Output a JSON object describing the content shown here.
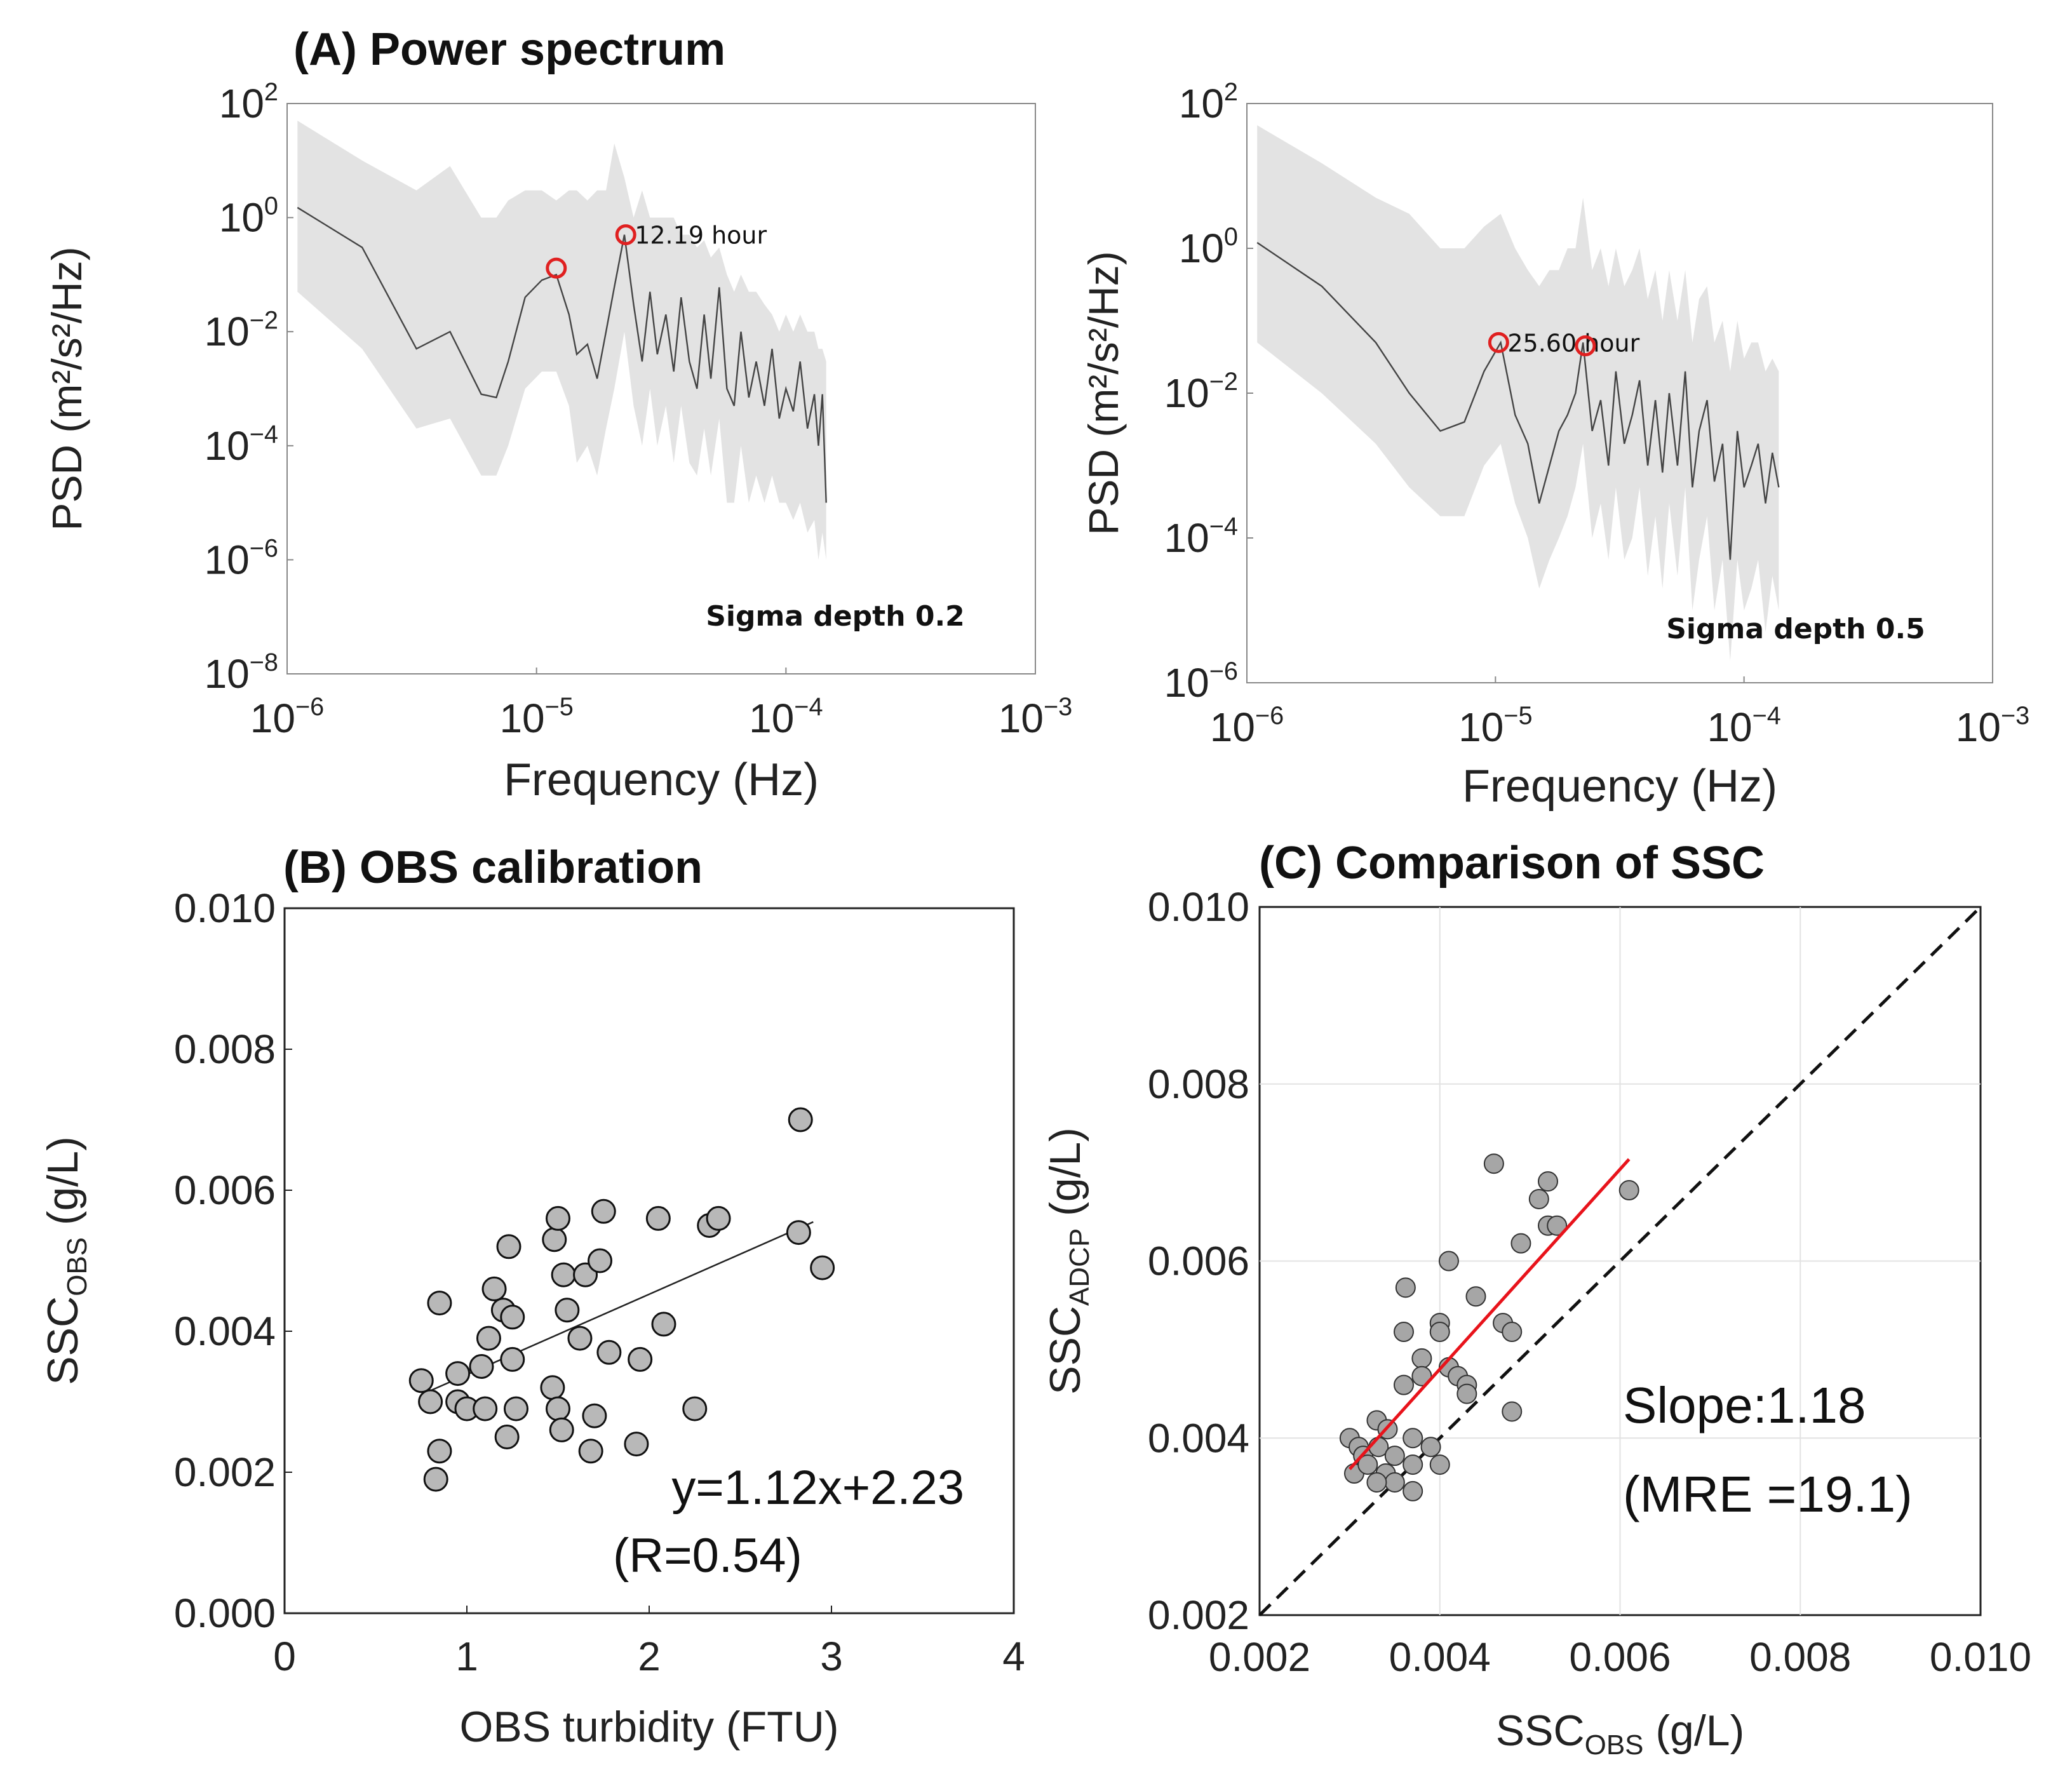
{
  "chart_data": [
    {
      "id": "A1",
      "type": "line",
      "title": "(A) Power spectrum",
      "xlabel": "Frequency (Hz)",
      "ylabel": "PSD (m²/s²/Hz)",
      "xscale": "log",
      "yscale": "log",
      "xlim": [
        1e-06,
        0.001
      ],
      "ylim": [
        1e-08,
        100
      ],
      "xticks": [
        {
          "v": 1e-06,
          "base": "10",
          "exp": "−6"
        },
        {
          "v": 1e-05,
          "base": "10",
          "exp": "−5"
        },
        {
          "v": 0.0001,
          "base": "10",
          "exp": "−4"
        },
        {
          "v": 0.001,
          "base": "10",
          "exp": "−3"
        }
      ],
      "yticks": [
        {
          "v": 1e-08,
          "base": "10",
          "exp": "−8"
        },
        {
          "v": 1e-06,
          "base": "10",
          "exp": "−6"
        },
        {
          "v": 0.0001,
          "base": "10",
          "exp": "−4"
        },
        {
          "v": 0.01,
          "base": "10",
          "exp": "−2"
        },
        {
          "v": 1,
          "base": "10",
          "exp": "0"
        },
        {
          "v": 100,
          "base": "10",
          "exp": "2"
        }
      ],
      "series": [
        {
          "name": "PSD",
          "x": [
            1.1e-06,
            2e-06,
            3.3e-06,
            4.5e-06,
            6e-06,
            6.9e-06,
            7.7e-06,
            9e-06,
            1.05e-05,
            1.2e-05,
            1.35e-05,
            1.45e-05,
            1.6e-05,
            1.75e-05,
            1.9e-05,
            2.05e-05,
            2.25e-05,
            2.45e-05,
            2.65e-05,
            2.85e-05,
            3.05e-05,
            3.3e-05,
            3.55e-05,
            3.8e-05,
            4.1e-05,
            4.4e-05,
            4.7e-05,
            5e-05,
            5.4e-05,
            5.8e-05,
            6.2e-05,
            6.6e-05,
            7.1e-05,
            7.6e-05,
            8.2e-05,
            8.8e-05,
            9.4e-05,
            0.0001,
            0.000107,
            0.000114,
            0.000122,
            0.00013,
            0.000135,
            0.00014,
            0.000145
          ],
          "y": [
            1.5,
            0.3,
            0.005,
            0.01,
            0.0008,
            0.0007,
            0.003,
            0.04,
            0.08,
            0.1,
            0.02,
            0.004,
            0.006,
            0.0015,
            0.01,
            0.06,
            0.5,
            0.03,
            0.003,
            0.05,
            0.004,
            0.02,
            0.002,
            0.04,
            0.003,
            0.001,
            0.02,
            0.0015,
            0.06,
            0.001,
            0.0005,
            0.01,
            0.0007,
            0.003,
            0.0005,
            0.005,
            0.0003,
            0.001,
            0.0004,
            0.003,
            0.0002,
            0.0008,
            0.0001,
            0.0008,
            1e-05
          ]
        }
      ],
      "band_upper": [
        50,
        10,
        3,
        8,
        1,
        1,
        2,
        3,
        3,
        2,
        3,
        3,
        2,
        3,
        3,
        20,
        5,
        1,
        3,
        1,
        1,
        1,
        1,
        0.5,
        0.5,
        0.3,
        0.4,
        0.2,
        0.3,
        0.1,
        0.05,
        0.1,
        0.05,
        0.05,
        0.03,
        0.02,
        0.01,
        0.02,
        0.01,
        0.02,
        0.01,
        0.01,
        0.005,
        0.005,
        0.003
      ],
      "band_lower": [
        0.05,
        0.005,
        0.0002,
        0.0003,
        3e-05,
        3e-05,
        0.0001,
        0.001,
        0.002,
        0.002,
        0.0005,
        5e-05,
        0.0001,
        3e-05,
        0.0002,
        0.001,
        0.01,
        0.0005,
        0.0001,
        0.001,
        0.0001,
        0.0005,
        5e-05,
        0.0005,
        5e-05,
        3e-05,
        0.0002,
        3e-05,
        0.0003,
        1e-05,
        1e-05,
        0.0001,
        1e-05,
        3e-05,
        1e-05,
        3e-05,
        1e-05,
        1e-05,
        5e-06,
        1e-05,
        3e-06,
        5e-06,
        1e-06,
        3e-06,
        1e-06
      ],
      "peaks": [
        {
          "x": 1.2e-05,
          "y": 0.13
        },
        {
          "x": 2.28e-05,
          "y": 0.5,
          "label": "12.19 hour"
        }
      ],
      "annotation": "Sigma depth 0.2"
    },
    {
      "id": "A2",
      "type": "line",
      "title": "",
      "xlabel": "Frequency (Hz)",
      "ylabel": "PSD (m²/s²/Hz)",
      "xscale": "log",
      "yscale": "log",
      "xlim": [
        1e-06,
        0.001
      ],
      "ylim": [
        1e-06,
        100
      ],
      "xticks": [
        {
          "v": 1e-06,
          "base": "10",
          "exp": "−6"
        },
        {
          "v": 1e-05,
          "base": "10",
          "exp": "−5"
        },
        {
          "v": 0.0001,
          "base": "10",
          "exp": "−4"
        },
        {
          "v": 0.001,
          "base": "10",
          "exp": "−3"
        }
      ],
      "yticks": [
        {
          "v": 1e-06,
          "base": "10",
          "exp": "−6"
        },
        {
          "v": 0.0001,
          "base": "10",
          "exp": "−4"
        },
        {
          "v": 0.01,
          "base": "10",
          "exp": "−2"
        },
        {
          "v": 1,
          "base": "10",
          "exp": "0"
        },
        {
          "v": 100,
          "base": "10",
          "exp": "2"
        }
      ],
      "series": [
        {
          "name": "PSD",
          "x": [
            1.1e-06,
            2e-06,
            3.3e-06,
            4.5e-06,
            6e-06,
            7.5e-06,
            9e-06,
            1.05e-05,
            1.2e-05,
            1.35e-05,
            1.5e-05,
            1.65e-05,
            1.8e-05,
            1.95e-05,
            2.1e-05,
            2.25e-05,
            2.45e-05,
            2.65e-05,
            2.85e-05,
            3.05e-05,
            3.3e-05,
            3.55e-05,
            3.8e-05,
            4.1e-05,
            4.4e-05,
            4.7e-05,
            5e-05,
            5.4e-05,
            5.8e-05,
            6.2e-05,
            6.6e-05,
            7.1e-05,
            7.6e-05,
            8.2e-05,
            8.8e-05,
            9.4e-05,
            0.0001,
            0.000107,
            0.000114,
            0.000122,
            0.00013,
            0.000138
          ],
          "y": [
            1.2,
            0.3,
            0.05,
            0.01,
            0.003,
            0.004,
            0.02,
            0.05,
            0.005,
            0.002,
            0.0003,
            0.001,
            0.003,
            0.005,
            0.01,
            0.05,
            0.003,
            0.008,
            0.001,
            0.02,
            0.002,
            0.005,
            0.015,
            0.001,
            0.008,
            0.0008,
            0.01,
            0.001,
            0.02,
            0.0005,
            0.003,
            0.008,
            0.0006,
            0.002,
            5e-05,
            0.003,
            0.0005,
            0.001,
            0.002,
            0.0003,
            0.0015,
            0.0005
          ]
        }
      ],
      "band_upper": [
        50,
        15,
        5,
        3,
        1,
        1,
        2,
        3,
        1,
        0.5,
        0.3,
        0.5,
        0.5,
        1,
        1,
        5,
        0.5,
        1,
        0.3,
        1,
        0.3,
        0.5,
        1,
        0.2,
        0.5,
        0.1,
        0.5,
        0.1,
        0.5,
        0.05,
        0.2,
        0.3,
        0.05,
        0.1,
        0.02,
        0.1,
        0.03,
        0.05,
        0.05,
        0.02,
        0.03,
        0.02
      ],
      "band_lower": [
        0.05,
        0.01,
        0.002,
        0.0005,
        0.0002,
        0.0002,
        0.001,
        0.002,
        0.0003,
        0.0001,
        2e-05,
        5e-05,
        0.0001,
        0.0002,
        0.0005,
        0.002,
        0.0001,
        0.0003,
        5e-05,
        0.0005,
        5e-05,
        0.0001,
        0.0005,
        3e-05,
        0.0002,
        2e-05,
        0.0003,
        3e-05,
        0.0005,
        1e-05,
        5e-05,
        0.0002,
        1e-05,
        5e-05,
        2e-06,
        5e-05,
        1e-05,
        2e-05,
        5e-05,
        5e-06,
        3e-05,
        1e-05
      ],
      "peaks": [
        {
          "x": 1.03e-05,
          "y": 0.05,
          "label": "25.60 hour"
        },
        {
          "x": 2.3e-05,
          "y": 0.045
        }
      ],
      "annotation": "Sigma depth 0.5"
    },
    {
      "id": "B",
      "type": "scatter",
      "title": "(B) OBS calibration",
      "xlabel": "OBS turbidity (FTU)",
      "ylabel_main": "SSC",
      "ylabel_sub": "OBS",
      "ylabel_tail": " (g/L)",
      "xlim": [
        0,
        4
      ],
      "ylim": [
        0,
        0.01
      ],
      "xticks": [
        "0",
        "1",
        "2",
        "3",
        "4"
      ],
      "yticks": [
        "0.000",
        "0.002",
        "0.004",
        "0.006",
        "0.008",
        "0.010"
      ],
      "x": [
        0.75,
        0.8,
        0.83,
        0.85,
        0.85,
        0.95,
        0.95,
        1.0,
        1.08,
        1.1,
        1.12,
        1.15,
        1.2,
        1.22,
        1.23,
        1.25,
        1.25,
        1.27,
        1.47,
        1.48,
        1.5,
        1.5,
        1.52,
        1.53,
        1.55,
        1.62,
        1.65,
        1.68,
        1.7,
        1.73,
        1.75,
        1.78,
        1.93,
        1.95,
        2.05,
        2.08,
        2.25,
        2.33,
        2.38,
        2.82,
        2.83,
        2.95
      ],
      "y": [
        0.0033,
        0.003,
        0.0019,
        0.0044,
        0.0023,
        0.0034,
        0.003,
        0.0029,
        0.0035,
        0.0029,
        0.0039,
        0.0046,
        0.0043,
        0.0025,
        0.0052,
        0.0036,
        0.0042,
        0.0029,
        0.0032,
        0.0053,
        0.0056,
        0.0029,
        0.0026,
        0.0048,
        0.0043,
        0.0039,
        0.0048,
        0.0023,
        0.0028,
        0.005,
        0.0057,
        0.0037,
        0.0024,
        0.0036,
        0.0056,
        0.0041,
        0.0029,
        0.0055,
        0.0056,
        0.0054,
        0.007,
        0.0049
      ],
      "fit": {
        "x": [
          0.75,
          2.9
        ],
        "y": [
          0.0031,
          0.00555
        ]
      },
      "equation": "y=1.12x+2.23",
      "r_text": "(R=0.54)"
    },
    {
      "id": "C",
      "type": "scatter",
      "title": "(C) Comparison of SSC",
      "xlabel_main": "SSC",
      "xlabel_sub": "OBS",
      "xlabel_tail": " (g/L)",
      "ylabel_main": "SSC",
      "ylabel_sub": "ADCP",
      "ylabel_tail": " (g/L)",
      "xlim": [
        0.002,
        0.01
      ],
      "ylim": [
        0.002,
        0.01
      ],
      "xticks": [
        "0.002",
        "0.004",
        "0.006",
        "0.008",
        "0.010"
      ],
      "yticks": [
        "0.002",
        "0.004",
        "0.006",
        "0.008",
        "0.010"
      ],
      "x": [
        0.003,
        0.00305,
        0.0031,
        0.00315,
        0.0032,
        0.0033,
        0.00332,
        0.0034,
        0.00342,
        0.0035,
        0.0035,
        0.0036,
        0.00362,
        0.0037,
        0.0037,
        0.0037,
        0.0038,
        0.0038,
        0.0039,
        0.004,
        0.004,
        0.004,
        0.0041,
        0.0041,
        0.0042,
        0.0043,
        0.0043,
        0.0044,
        0.0046,
        0.0047,
        0.0048,
        0.0048,
        0.0049,
        0.0051,
        0.0052,
        0.0052,
        0.0053,
        0.0061,
        0.0036,
        0.0033
      ],
      "y": [
        0.004,
        0.0036,
        0.0039,
        0.0038,
        0.0037,
        0.0042,
        0.0039,
        0.0036,
        0.0041,
        0.0035,
        0.0038,
        0.0046,
        0.0057,
        0.0037,
        0.0034,
        0.004,
        0.0049,
        0.0047,
        0.0039,
        0.0053,
        0.0052,
        0.0037,
        0.0048,
        0.006,
        0.0047,
        0.0046,
        0.0045,
        0.0056,
        0.0071,
        0.0053,
        0.0052,
        0.0043,
        0.0062,
        0.0067,
        0.0064,
        0.0069,
        0.0064,
        0.0068,
        0.0052,
        0.0035
      ],
      "fit": {
        "x": [
          0.003,
          0.0061
        ],
        "y": [
          0.00365,
          0.00715
        ]
      },
      "one_to_one": true,
      "slope_text": "Slope:1.18",
      "mre_text": "(MRE =19.1)"
    }
  ]
}
